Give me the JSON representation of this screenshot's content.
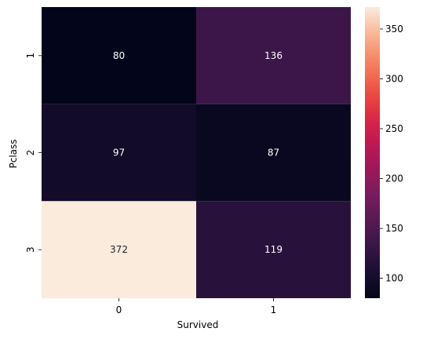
{
  "chart_data": {
    "type": "heatmap",
    "title": "",
    "xlabel": "Survived",
    "ylabel": "Pclass",
    "x_categories": [
      "0",
      "1"
    ],
    "y_categories": [
      "1",
      "2",
      "3"
    ],
    "values": [
      [
        80,
        136
      ],
      [
        97,
        87
      ],
      [
        372,
        119
      ]
    ],
    "colormap": "rocket",
    "colorbar": {
      "vmin": 80,
      "vmax": 372,
      "ticks": [
        100,
        150,
        200,
        250,
        300,
        350
      ]
    },
    "annotations": true,
    "grid": false,
    "legend": "colorbar-right"
  }
}
